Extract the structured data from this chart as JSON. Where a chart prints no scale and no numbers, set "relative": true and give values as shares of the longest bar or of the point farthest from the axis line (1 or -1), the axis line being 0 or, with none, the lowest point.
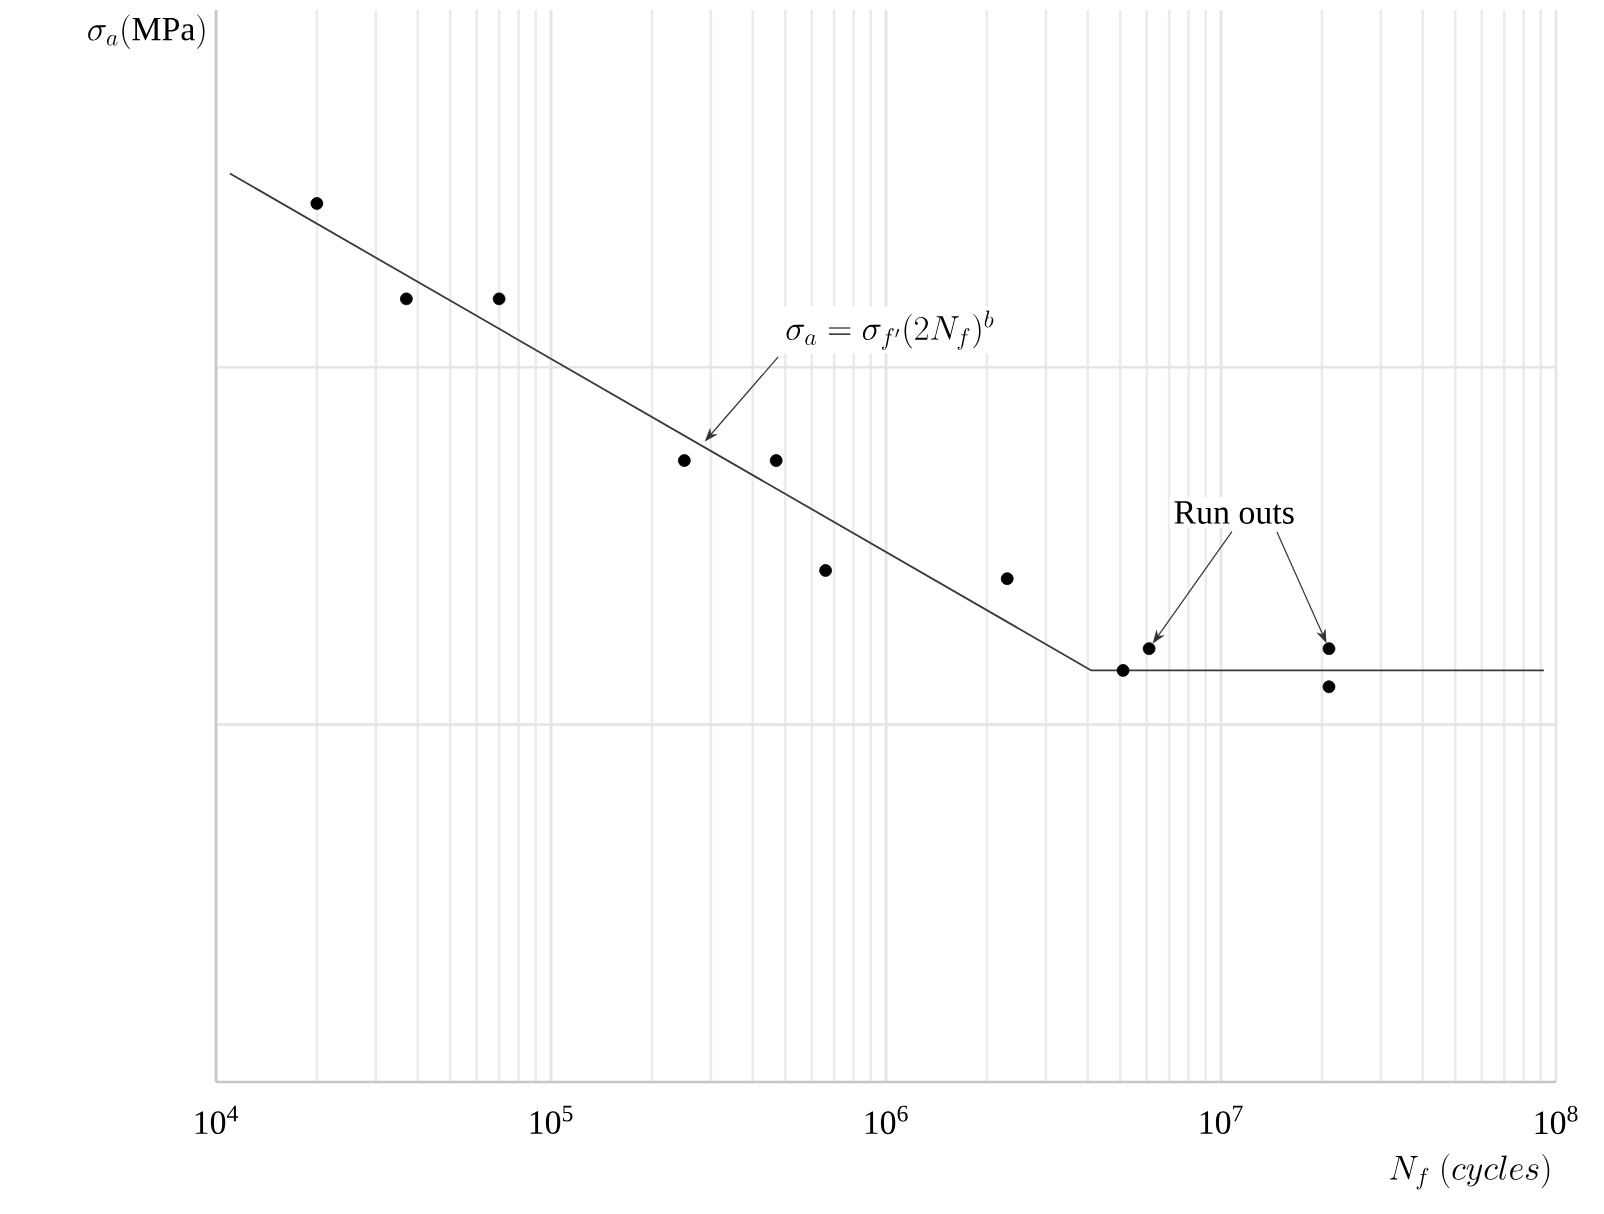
{
  "chart_data": {
    "type": "scatter",
    "relative": true,
    "xlabel": "N_f\\ (cycles)",
    "log": "x",
    "grid": true,
    "xlim": [
      10000,
      100000000
    ],
    "xticks": [
      {
        "value": 10000,
        "label": "10$^{4}$"
      },
      {
        "value": 100000,
        "label": "10$^{5}$"
      },
      {
        "value": 1000000,
        "label": "10$^{6}$"
      },
      {
        "value": 10000000,
        "label": "10$^{7}$"
      },
      {
        "value": 100000000,
        "label": "10$^{8}$"
      }
    ],
    "series": [
      {
        "type": "line",
        "color": "#3a3a3a",
        "line_style": "solid",
        "marker": "none",
        "x": [
          11000,
          4100000,
          92000000
        ],
        "values": [
          1,
          0.453,
          0.453
        ]
      },
      {
        "type": "scatter",
        "color": "#000000",
        "marker": "circle",
        "x": [
          20000,
          37000,
          70000,
          250000,
          470000,
          660000,
          2300000,
          5100000,
          6100000,
          21000000,
          21000000
        ],
        "values": [
          0.967,
          0.862,
          0.862,
          0.684,
          0.684,
          0.563,
          0.554,
          0.453,
          0.477,
          0.477,
          0.435
        ]
      }
    ],
    "annotations": [
      {
        "text": "\\sigma_a = \\sigma_{f'}(2N_f)^b",
        "x": 280000,
        "y": 0.7
      },
      {
        "text": "Run outs",
        "x": 6100000,
        "y": 0.477
      },
      "\\sigma_a(\\mathrm{MPa})"
    ]
  }
}
